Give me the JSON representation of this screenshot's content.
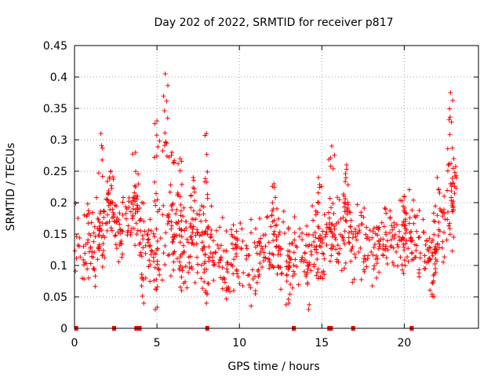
{
  "chart_data": {
    "type": "scatter",
    "title": "Day 202 of 2022, SRMTID for receiver p817",
    "xlabel": "GPS time / hours",
    "ylabel": "SRMTID / TECUs",
    "xlim": [
      0,
      24.5
    ],
    "ylim": [
      0,
      0.45
    ],
    "x_ticks": [
      0,
      5,
      10,
      15,
      20
    ],
    "x_tick_labels": [
      "0",
      "5",
      "10",
      "15",
      "20"
    ],
    "y_ticks": [
      0,
      0.05,
      0.1,
      0.15,
      0.2,
      0.25,
      0.3,
      0.35,
      0.4,
      0.45
    ],
    "y_tick_labels": [
      "0",
      "0.05",
      "0.1",
      "0.15",
      "0.2",
      "0.25",
      "0.3",
      "0.35",
      "0.4",
      "0.45"
    ],
    "grid": true,
    "point_style": "plus",
    "color": "#ff0000",
    "series": [
      {
        "name": "SRMTID",
        "profile": [
          [
            0.0,
            0.13
          ],
          [
            0.5,
            0.12
          ],
          [
            1.0,
            0.15
          ],
          [
            1.5,
            0.14
          ],
          [
            2.0,
            0.19
          ],
          [
            2.5,
            0.17
          ],
          [
            3.0,
            0.16
          ],
          [
            3.5,
            0.18
          ],
          [
            4.0,
            0.15
          ],
          [
            4.5,
            0.13
          ],
          [
            5.0,
            0.12
          ],
          [
            5.5,
            0.16
          ],
          [
            6.0,
            0.14
          ],
          [
            6.5,
            0.15
          ],
          [
            7.0,
            0.12
          ],
          [
            7.5,
            0.14
          ],
          [
            8.0,
            0.13
          ],
          [
            8.5,
            0.12
          ],
          [
            9.0,
            0.1
          ],
          [
            9.5,
            0.11
          ],
          [
            10.0,
            0.11
          ],
          [
            10.5,
            0.11
          ],
          [
            11.0,
            0.11
          ],
          [
            11.5,
            0.12
          ],
          [
            12.0,
            0.13
          ],
          [
            12.5,
            0.12
          ],
          [
            13.0,
            0.11
          ],
          [
            13.5,
            0.12
          ],
          [
            14.0,
            0.12
          ],
          [
            14.5,
            0.13
          ],
          [
            15.0,
            0.12
          ],
          [
            15.5,
            0.14
          ],
          [
            16.0,
            0.15
          ],
          [
            16.5,
            0.16
          ],
          [
            17.0,
            0.13
          ],
          [
            17.5,
            0.14
          ],
          [
            18.0,
            0.12
          ],
          [
            18.5,
            0.14
          ],
          [
            19.0,
            0.13
          ],
          [
            19.5,
            0.15
          ],
          [
            20.0,
            0.14
          ],
          [
            20.5,
            0.15
          ],
          [
            21.0,
            0.14
          ],
          [
            21.5,
            0.13
          ],
          [
            22.0,
            0.12
          ],
          [
            22.5,
            0.18
          ],
          [
            23.0,
            0.2
          ]
        ],
        "spikes": [
          [
            1.6,
            0.31
          ],
          [
            2.2,
            0.25
          ],
          [
            3.7,
            0.28
          ],
          [
            5.0,
            0.33
          ],
          [
            5.5,
            0.405
          ],
          [
            5.9,
            0.28
          ],
          [
            6.4,
            0.27
          ],
          [
            7.2,
            0.24
          ],
          [
            8.0,
            0.31
          ],
          [
            12.1,
            0.23
          ],
          [
            14.8,
            0.24
          ],
          [
            15.6,
            0.29
          ],
          [
            16.5,
            0.26
          ],
          [
            20.0,
            0.21
          ],
          [
            22.0,
            0.24
          ],
          [
            22.8,
            0.375
          ],
          [
            23.0,
            0.27
          ]
        ],
        "dips": [
          [
            4.2,
            0.04
          ],
          [
            4.9,
            0.03
          ],
          [
            6.5,
            0.06
          ],
          [
            8.0,
            0.04
          ],
          [
            9.2,
            0.06
          ],
          [
            13.0,
            0.04
          ],
          [
            14.2,
            0.03
          ],
          [
            21.8,
            0.05
          ]
        ]
      }
    ],
    "gap_markers_x": [
      0.1,
      2.4,
      3.75,
      3.95,
      8.05,
      13.3,
      15.45,
      15.55,
      16.9,
      20.45
    ]
  }
}
